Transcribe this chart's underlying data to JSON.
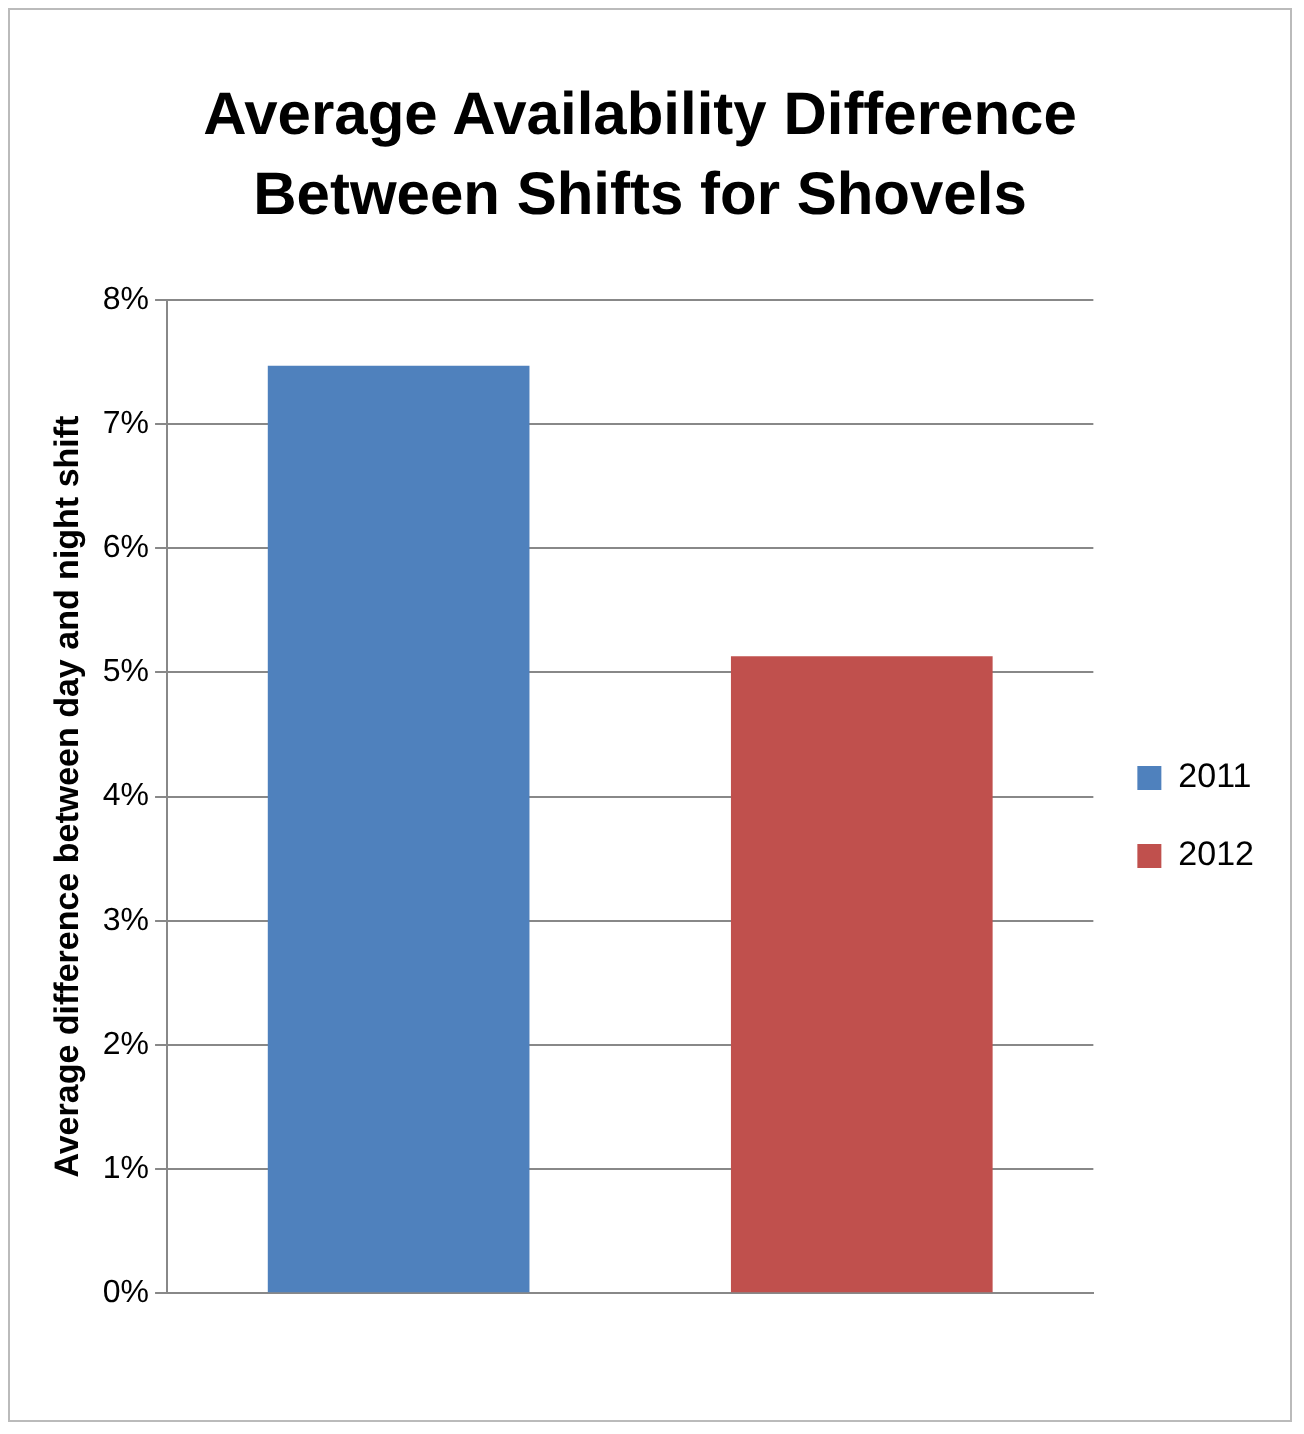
{
  "chart_data": {
    "type": "bar",
    "title": "Average Availability Difference Between Shifts for Shovels",
    "ylabel": "Average difference between day and night shift",
    "categories": [
      null
    ],
    "series": [
      {
        "name": "2011",
        "color": "#4f81bd",
        "values": [
          7.47
        ]
      },
      {
        "name": "2012",
        "color": "#c0504d",
        "values": [
          5.13
        ]
      }
    ],
    "ylim": [
      0,
      8
    ],
    "yticks": [
      {
        "value": 0,
        "label": "0%"
      },
      {
        "value": 1,
        "label": "1%"
      },
      {
        "value": 2,
        "label": "2%"
      },
      {
        "value": 3,
        "label": "3%"
      },
      {
        "value": 4,
        "label": "4%"
      },
      {
        "value": 5,
        "label": "5%"
      },
      {
        "value": 6,
        "label": "6%"
      },
      {
        "value": 7,
        "label": "7%"
      },
      {
        "value": 8,
        "label": "8%"
      }
    ],
    "grid": "y",
    "legend": "right"
  }
}
